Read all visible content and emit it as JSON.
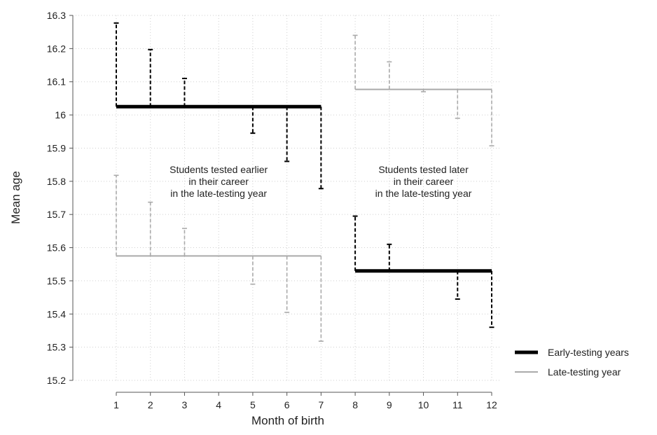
{
  "chart_data": {
    "type": "line",
    "xlabel": "Month of birth",
    "ylabel": "Mean age",
    "xlim": [
      0,
      12.2
    ],
    "ylim": [
      15.2,
      16.3
    ],
    "x_ticks": [
      1,
      2,
      3,
      4,
      5,
      6,
      7,
      8,
      9,
      10,
      11,
      12
    ],
    "y_ticks": [
      15.2,
      15.3,
      15.4,
      15.5,
      15.6,
      15.7,
      15.8,
      15.9,
      16.0,
      16.1,
      16.2,
      16.3
    ],
    "y_tick_labels": [
      "15.2",
      "15.3",
      "15.4",
      "15.5",
      "15.6",
      "15.7",
      "15.8",
      "15.9",
      "16",
      "16.1",
      "16.2",
      "16.3"
    ],
    "grid": true,
    "legend_position": "right",
    "series": [
      {
        "name": "Early-testing years",
        "color": "#000000",
        "style": "thick",
        "segments": [
          {
            "x_start": 1,
            "x_end": 7,
            "baseline": 16.025,
            "points": [
              {
                "x": 1,
                "y": 16.277
              },
              {
                "x": 2,
                "y": 16.197
              },
              {
                "x": 3,
                "y": 16.11
              },
              {
                "x": 5,
                "y": 15.945
              },
              {
                "x": 6,
                "y": 15.86
              },
              {
                "x": 7,
                "y": 15.778
              }
            ]
          },
          {
            "x_start": 8,
            "x_end": 12,
            "baseline": 15.53,
            "points": [
              {
                "x": 8,
                "y": 15.695
              },
              {
                "x": 9,
                "y": 15.61
              },
              {
                "x": 11,
                "y": 15.445
              },
              {
                "x": 12,
                "y": 15.36
              }
            ]
          }
        ]
      },
      {
        "name": "Late-testing year",
        "color": "#aaaaaa",
        "style": "thin",
        "segments": [
          {
            "x_start": 1,
            "x_end": 7,
            "baseline": 15.575,
            "points": [
              {
                "x": 1,
                "y": 15.818
              },
              {
                "x": 2,
                "y": 15.737
              },
              {
                "x": 3,
                "y": 15.658
              },
              {
                "x": 4,
                "y": 15.575
              },
              {
                "x": 5,
                "y": 15.49
              },
              {
                "x": 6,
                "y": 15.405
              },
              {
                "x": 7,
                "y": 15.318
              }
            ]
          },
          {
            "x_start": 8,
            "x_end": 12,
            "baseline": 16.077,
            "points": [
              {
                "x": 8,
                "y": 16.24
              },
              {
                "x": 9,
                "y": 16.16
              },
              {
                "x": 10,
                "y": 16.07
              },
              {
                "x": 11,
                "y": 15.99
              },
              {
                "x": 12,
                "y": 15.907
              }
            ]
          }
        ]
      }
    ],
    "annotations": [
      {
        "x": 4.0,
        "y": 15.835,
        "lines": [
          "Students tested earlier",
          "in their career",
          "in the late-testing year"
        ]
      },
      {
        "x": 10.0,
        "y": 15.835,
        "lines": [
          "Students tested later",
          "in their career",
          "in the late-testing year"
        ]
      }
    ]
  }
}
